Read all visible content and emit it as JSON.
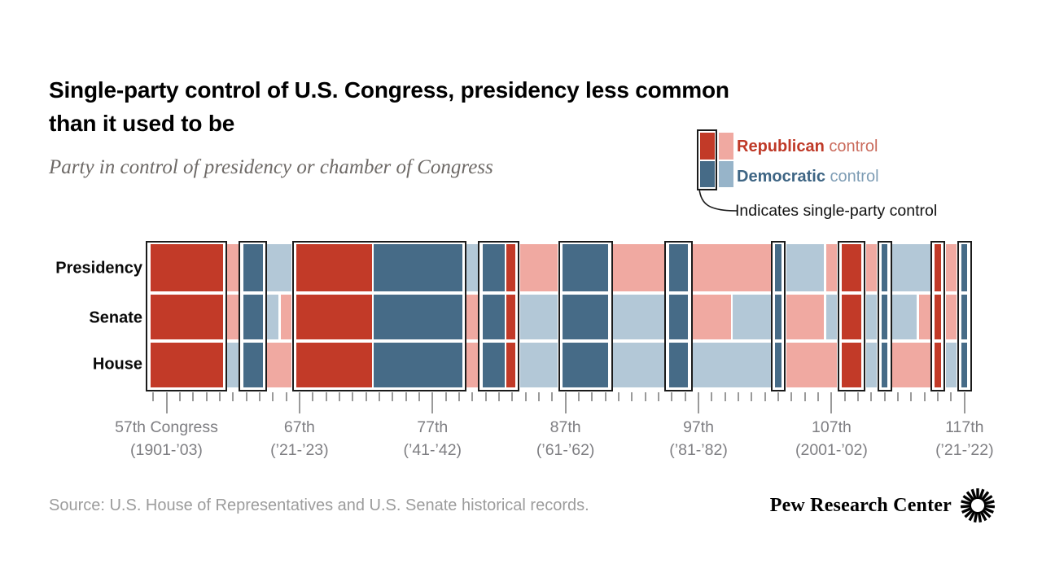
{
  "title_line1": "Single-party control of U.S. Congress, presidency less common",
  "title_line2": "than it used to be",
  "subtitle": "Party in control of presidency or chamber of Congress",
  "legend": {
    "republican_bold": "Republican",
    "republican_rest": " control",
    "democratic_bold": "Democratic",
    "democratic_rest": " control",
    "note": "Indicates single-party control"
  },
  "rows": {
    "presidency": "Presidency",
    "senate": "Senate",
    "house": "House"
  },
  "source": "Source: U.S. House of Representatives and U.S. Senate historical records.",
  "brand": "Pew Research Center",
  "colors": {
    "republican_dark": "#C23A28",
    "republican_light": "#F0A9A1",
    "democratic_dark": "#466B87",
    "democratic_light": "#B3C8D7",
    "legend_democratic_light": "#97B4C9",
    "legend_republican_light": "#F0A9A1",
    "outline": "#1B1B1B",
    "tick": "#9A9A9A",
    "republican_text": "#BF3927",
    "republican_text_light": "#CA6A5B",
    "democratic_text": "#3E6584",
    "democratic_text_light": "#7E9DB5"
  },
  "chart_data": {
    "type": "heatmap",
    "title": "Single-party control of U.S. Congress, presidency less common than it used to be",
    "subtitle": "Party in control of presidency or chamber of Congress",
    "rows": [
      "Presidency",
      "Senate",
      "House"
    ],
    "value_legend": {
      "R": "Republican control",
      "D": "Democratic control",
      "single": "Indicates single-party control"
    },
    "x_labels": [
      {
        "col": 1,
        "line1": "57th Congress",
        "line2": "(1901-’03)"
      },
      {
        "col": 11,
        "line1": "67th",
        "line2": "(’21-’23)"
      },
      {
        "col": 21,
        "line1": "77th",
        "line2": "(’41-’42)"
      },
      {
        "col": 31,
        "line1": "87th",
        "line2": "(’61-’62)"
      },
      {
        "col": 41,
        "line1": "97th",
        "line2": "(’81-’82)"
      },
      {
        "col": 51,
        "line1": "107th",
        "line2": "(2001-’02)"
      },
      {
        "col": 61,
        "line1": "117th",
        "line2": "(’21-’22)"
      }
    ],
    "columns": [
      {
        "congress": 56,
        "presidency": "R",
        "senate": "R",
        "house": "R",
        "single": true
      },
      {
        "congress": 57,
        "presidency": "R",
        "senate": "R",
        "house": "R",
        "single": true
      },
      {
        "congress": 58,
        "presidency": "R",
        "senate": "R",
        "house": "R",
        "single": true
      },
      {
        "congress": 59,
        "presidency": "R",
        "senate": "R",
        "house": "R",
        "single": true
      },
      {
        "congress": 60,
        "presidency": "R",
        "senate": "R",
        "house": "R",
        "single": true
      },
      {
        "congress": 61,
        "presidency": "R",
        "senate": "R",
        "house": "R",
        "single": true
      },
      {
        "congress": 62,
        "presidency": "R",
        "senate": "R",
        "house": "D",
        "single": false
      },
      {
        "congress": 63,
        "presidency": "D",
        "senate": "D",
        "house": "D",
        "single": true
      },
      {
        "congress": 64,
        "presidency": "D",
        "senate": "D",
        "house": "D",
        "single": true
      },
      {
        "congress": 65,
        "presidency": "D",
        "senate": "D",
        "house": "R",
        "single": false
      },
      {
        "congress": 66,
        "presidency": "D",
        "senate": "R",
        "house": "R",
        "single": false
      },
      {
        "congress": 67,
        "presidency": "R",
        "senate": "R",
        "house": "R",
        "single": true
      },
      {
        "congress": 68,
        "presidency": "R",
        "senate": "R",
        "house": "R",
        "single": true
      },
      {
        "congress": 69,
        "presidency": "R",
        "senate": "R",
        "house": "R",
        "single": true
      },
      {
        "congress": 70,
        "presidency": "R",
        "senate": "R",
        "house": "R",
        "single": true
      },
      {
        "congress": 71,
        "presidency": "R",
        "senate": "R",
        "house": "R",
        "single": true
      },
      {
        "congress": 72,
        "presidency": "R",
        "senate": "R",
        "house": "R",
        "single": true
      },
      {
        "congress": 73,
        "presidency": "D",
        "senate": "D",
        "house": "D",
        "single": true
      },
      {
        "congress": 74,
        "presidency": "D",
        "senate": "D",
        "house": "D",
        "single": true
      },
      {
        "congress": 75,
        "presidency": "D",
        "senate": "D",
        "house": "D",
        "single": true
      },
      {
        "congress": 76,
        "presidency": "D",
        "senate": "D",
        "house": "D",
        "single": true
      },
      {
        "congress": 77,
        "presidency": "D",
        "senate": "D",
        "house": "D",
        "single": true
      },
      {
        "congress": 78,
        "presidency": "D",
        "senate": "D",
        "house": "D",
        "single": true
      },
      {
        "congress": 79,
        "presidency": "D",
        "senate": "D",
        "house": "D",
        "single": true
      },
      {
        "congress": 80,
        "presidency": "D",
        "senate": "R",
        "house": "R",
        "single": false
      },
      {
        "congress": 81,
        "presidency": "D",
        "senate": "D",
        "house": "D",
        "single": true
      },
      {
        "congress": 82,
        "presidency": "D",
        "senate": "D",
        "house": "D",
        "single": true
      },
      {
        "congress": 83,
        "presidency": "R",
        "senate": "R",
        "house": "R",
        "single": true
      },
      {
        "congress": 84,
        "presidency": "R",
        "senate": "D",
        "house": "D",
        "single": false
      },
      {
        "congress": 85,
        "presidency": "R",
        "senate": "D",
        "house": "D",
        "single": false
      },
      {
        "congress": 86,
        "presidency": "R",
        "senate": "D",
        "house": "D",
        "single": false
      },
      {
        "congress": 87,
        "presidency": "D",
        "senate": "D",
        "house": "D",
        "single": true
      },
      {
        "congress": 88,
        "presidency": "D",
        "senate": "D",
        "house": "D",
        "single": true
      },
      {
        "congress": 89,
        "presidency": "D",
        "senate": "D",
        "house": "D",
        "single": true
      },
      {
        "congress": 90,
        "presidency": "D",
        "senate": "D",
        "house": "D",
        "single": true
      },
      {
        "congress": 91,
        "presidency": "R",
        "senate": "D",
        "house": "D",
        "single": false
      },
      {
        "congress": 92,
        "presidency": "R",
        "senate": "D",
        "house": "D",
        "single": false
      },
      {
        "congress": 93,
        "presidency": "R",
        "senate": "D",
        "house": "D",
        "single": false
      },
      {
        "congress": 94,
        "presidency": "R",
        "senate": "D",
        "house": "D",
        "single": false
      },
      {
        "congress": 95,
        "presidency": "D",
        "senate": "D",
        "house": "D",
        "single": true
      },
      {
        "congress": 96,
        "presidency": "D",
        "senate": "D",
        "house": "D",
        "single": true
      },
      {
        "congress": 97,
        "presidency": "R",
        "senate": "R",
        "house": "D",
        "single": false
      },
      {
        "congress": 98,
        "presidency": "R",
        "senate": "R",
        "house": "D",
        "single": false
      },
      {
        "congress": 99,
        "presidency": "R",
        "senate": "R",
        "house": "D",
        "single": false
      },
      {
        "congress": 100,
        "presidency": "R",
        "senate": "D",
        "house": "D",
        "single": false
      },
      {
        "congress": 101,
        "presidency": "R",
        "senate": "D",
        "house": "D",
        "single": false
      },
      {
        "congress": 102,
        "presidency": "R",
        "senate": "D",
        "house": "D",
        "single": false
      },
      {
        "congress": 103,
        "presidency": "D",
        "senate": "D",
        "house": "D",
        "single": true
      },
      {
        "congress": 104,
        "presidency": "D",
        "senate": "R",
        "house": "R",
        "single": false
      },
      {
        "congress": 105,
        "presidency": "D",
        "senate": "R",
        "house": "R",
        "single": false
      },
      {
        "congress": 106,
        "presidency": "D",
        "senate": "R",
        "house": "R",
        "single": false
      },
      {
        "congress": 107,
        "presidency": "R",
        "senate": "D",
        "house": "R",
        "single": false
      },
      {
        "congress": 108,
        "presidency": "R",
        "senate": "R",
        "house": "R",
        "single": true
      },
      {
        "congress": 109,
        "presidency": "R",
        "senate": "R",
        "house": "R",
        "single": true
      },
      {
        "congress": 110,
        "presidency": "R",
        "senate": "D",
        "house": "D",
        "single": false
      },
      {
        "congress": 111,
        "presidency": "D",
        "senate": "D",
        "house": "D",
        "single": true
      },
      {
        "congress": 112,
        "presidency": "D",
        "senate": "D",
        "house": "R",
        "single": false
      },
      {
        "congress": 113,
        "presidency": "D",
        "senate": "D",
        "house": "R",
        "single": false
      },
      {
        "congress": 114,
        "presidency": "D",
        "senate": "R",
        "house": "R",
        "single": false
      },
      {
        "congress": 115,
        "presidency": "R",
        "senate": "R",
        "house": "R",
        "single": true
      },
      {
        "congress": 116,
        "presidency": "R",
        "senate": "R",
        "house": "D",
        "single": false
      },
      {
        "congress": 117,
        "presidency": "D",
        "senate": "D",
        "house": "D",
        "single": true
      }
    ]
  }
}
